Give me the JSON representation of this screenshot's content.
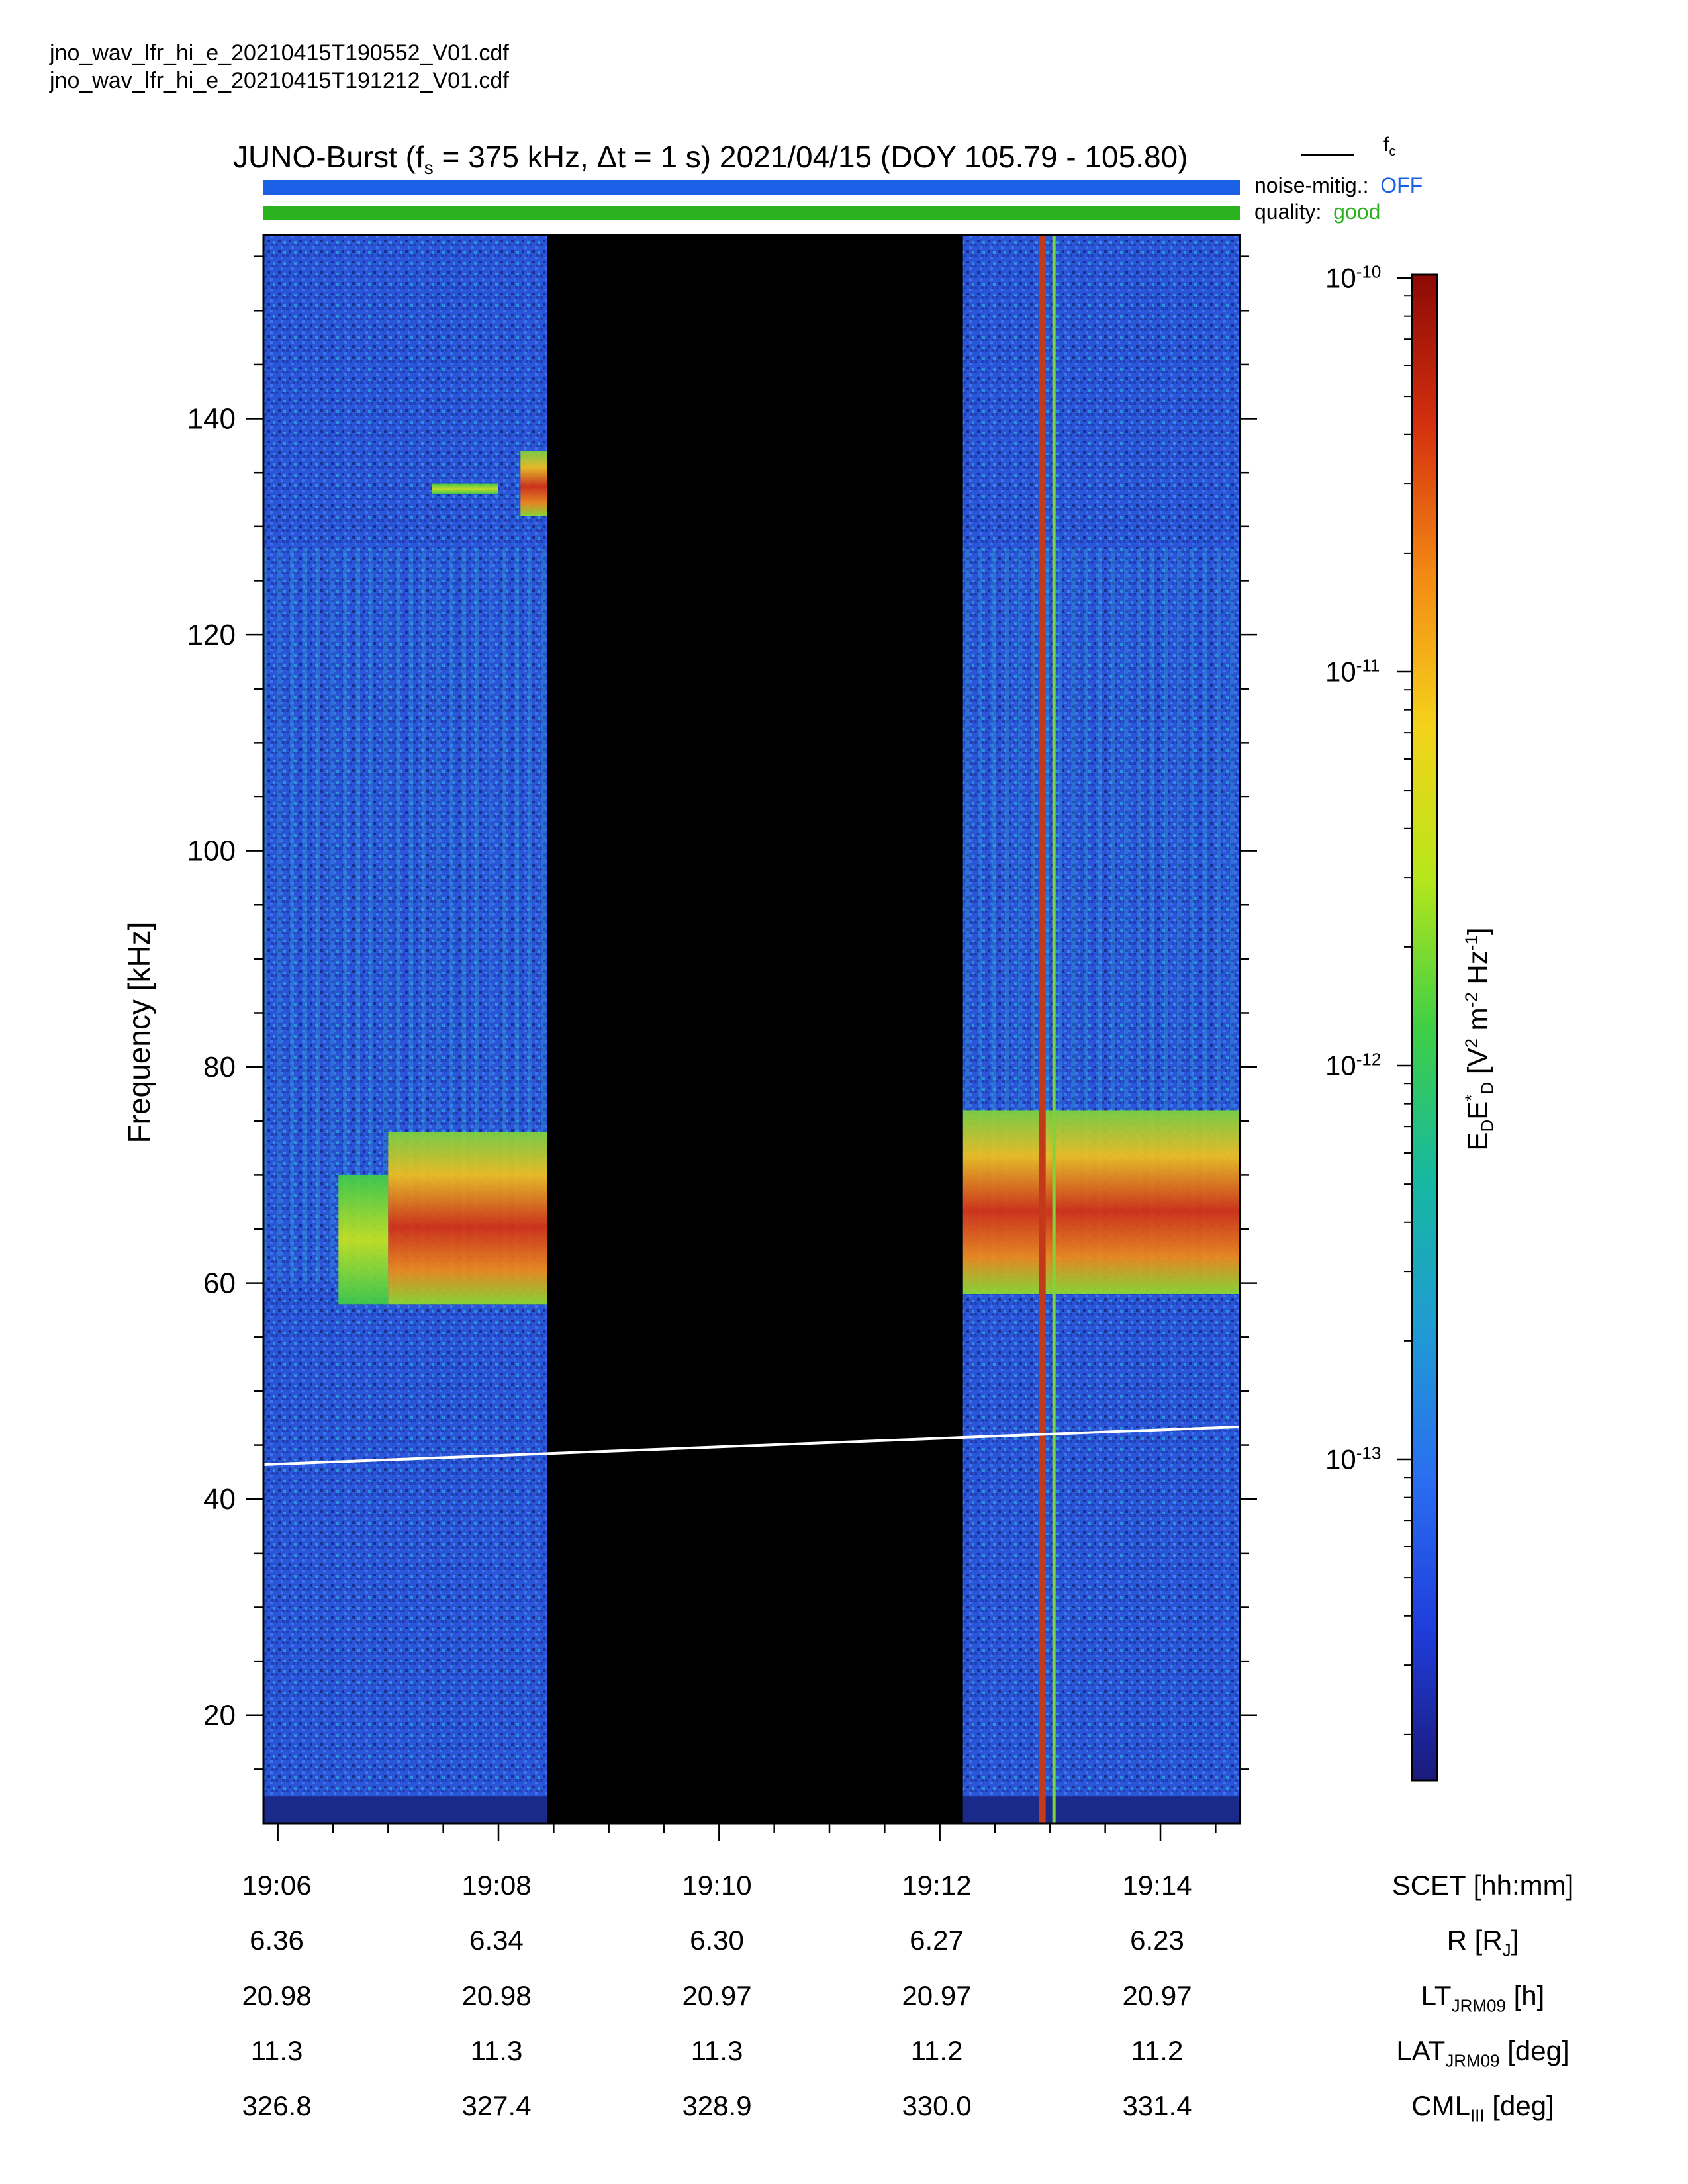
{
  "files": [
    "jno_wav_lfr_hi_e_20210415T190552_V01.cdf",
    "jno_wav_lfr_hi_e_20210415T191212_V01.cdf"
  ],
  "title": {
    "prefix": "JUNO-Burst (f",
    "sub": "s",
    "suffix": " = 375 kHz, Δt = 1 s)  2021/04/15 (DOY 105.79 - 105.80)"
  },
  "legend": {
    "line_label": "f",
    "line_sub": "c",
    "line_color": "#000000"
  },
  "flags": {
    "noise_label": "noise-mitig.:",
    "noise_value": "OFF",
    "noise_color": "#1a5fe6",
    "quality_label": "quality:",
    "quality_value": "good",
    "quality_color": "#2bb21f"
  },
  "chart_data": {
    "type": "heatmap",
    "ylabel": "Frequency [kHz]",
    "yticks": [
      20,
      40,
      60,
      80,
      100,
      120,
      140
    ],
    "ylim": [
      10,
      157
    ],
    "xticks": [
      "19:06",
      "19:08",
      "19:10",
      "19:12",
      "19:14"
    ],
    "xlim_minutes": [
      5.87,
      14.72
    ],
    "xtick_minutes": [
      6,
      8,
      10,
      12,
      14
    ],
    "data_gap_minutes": [
      8.44,
      12.21
    ],
    "fc_line": {
      "start_minutes": 5.87,
      "end_minutes": 14.72,
      "start_khz": 43.2,
      "end_khz": 46.7
    },
    "emission_bands": [
      {
        "t0": 6.55,
        "t1": 7.0,
        "f0": 58,
        "f1": 70,
        "level": "medium"
      },
      {
        "t0": 7.0,
        "t1": 8.44,
        "f0": 58,
        "f1": 74,
        "level": "high"
      },
      {
        "t0": 12.21,
        "t1": 14.72,
        "f0": 59,
        "f1": 76,
        "level": "high"
      },
      {
        "t0": 7.4,
        "t1": 8.0,
        "f0": 133,
        "f1": 134,
        "level": "medium"
      },
      {
        "t0": 8.2,
        "t1": 8.44,
        "f0": 131,
        "f1": 137,
        "level": "high"
      }
    ],
    "colorbar": {
      "label_main": "E",
      "ticks": [
        "10",
        "10",
        "10",
        "10"
      ],
      "tick_exps": [
        "-10",
        "-11",
        "-12",
        "-13"
      ],
      "scale": "log",
      "colors": [
        "#1a1a7a",
        "#1f3ddc",
        "#2a6ef0",
        "#1f9bd3",
        "#17b8a0",
        "#3fcf45",
        "#b7e61a",
        "#f4d21a",
        "#f38a14",
        "#d4300e",
        "#8c0a05"
      ]
    }
  },
  "ephemeris": {
    "labels": [
      "SCET [hh:mm]",
      "R [R",
      "LT",
      "LAT",
      "CML"
    ],
    "label_tails": [
      "",
      "]",
      " [h]",
      " [deg]",
      " [deg]"
    ],
    "label_subs": [
      "",
      "J",
      "JRM09",
      "JRM09",
      "III"
    ],
    "rows": [
      [
        "19:06",
        "19:08",
        "19:10",
        "19:12",
        "19:14"
      ],
      [
        "6.36",
        "6.34",
        "6.30",
        "6.27",
        "6.23"
      ],
      [
        "20.98",
        "20.98",
        "20.97",
        "20.97",
        "20.97"
      ],
      [
        "11.3",
        "11.3",
        "11.3",
        "11.2",
        "11.2"
      ],
      [
        "326.8",
        "327.4",
        "328.9",
        "330.0",
        "331.4"
      ]
    ]
  }
}
